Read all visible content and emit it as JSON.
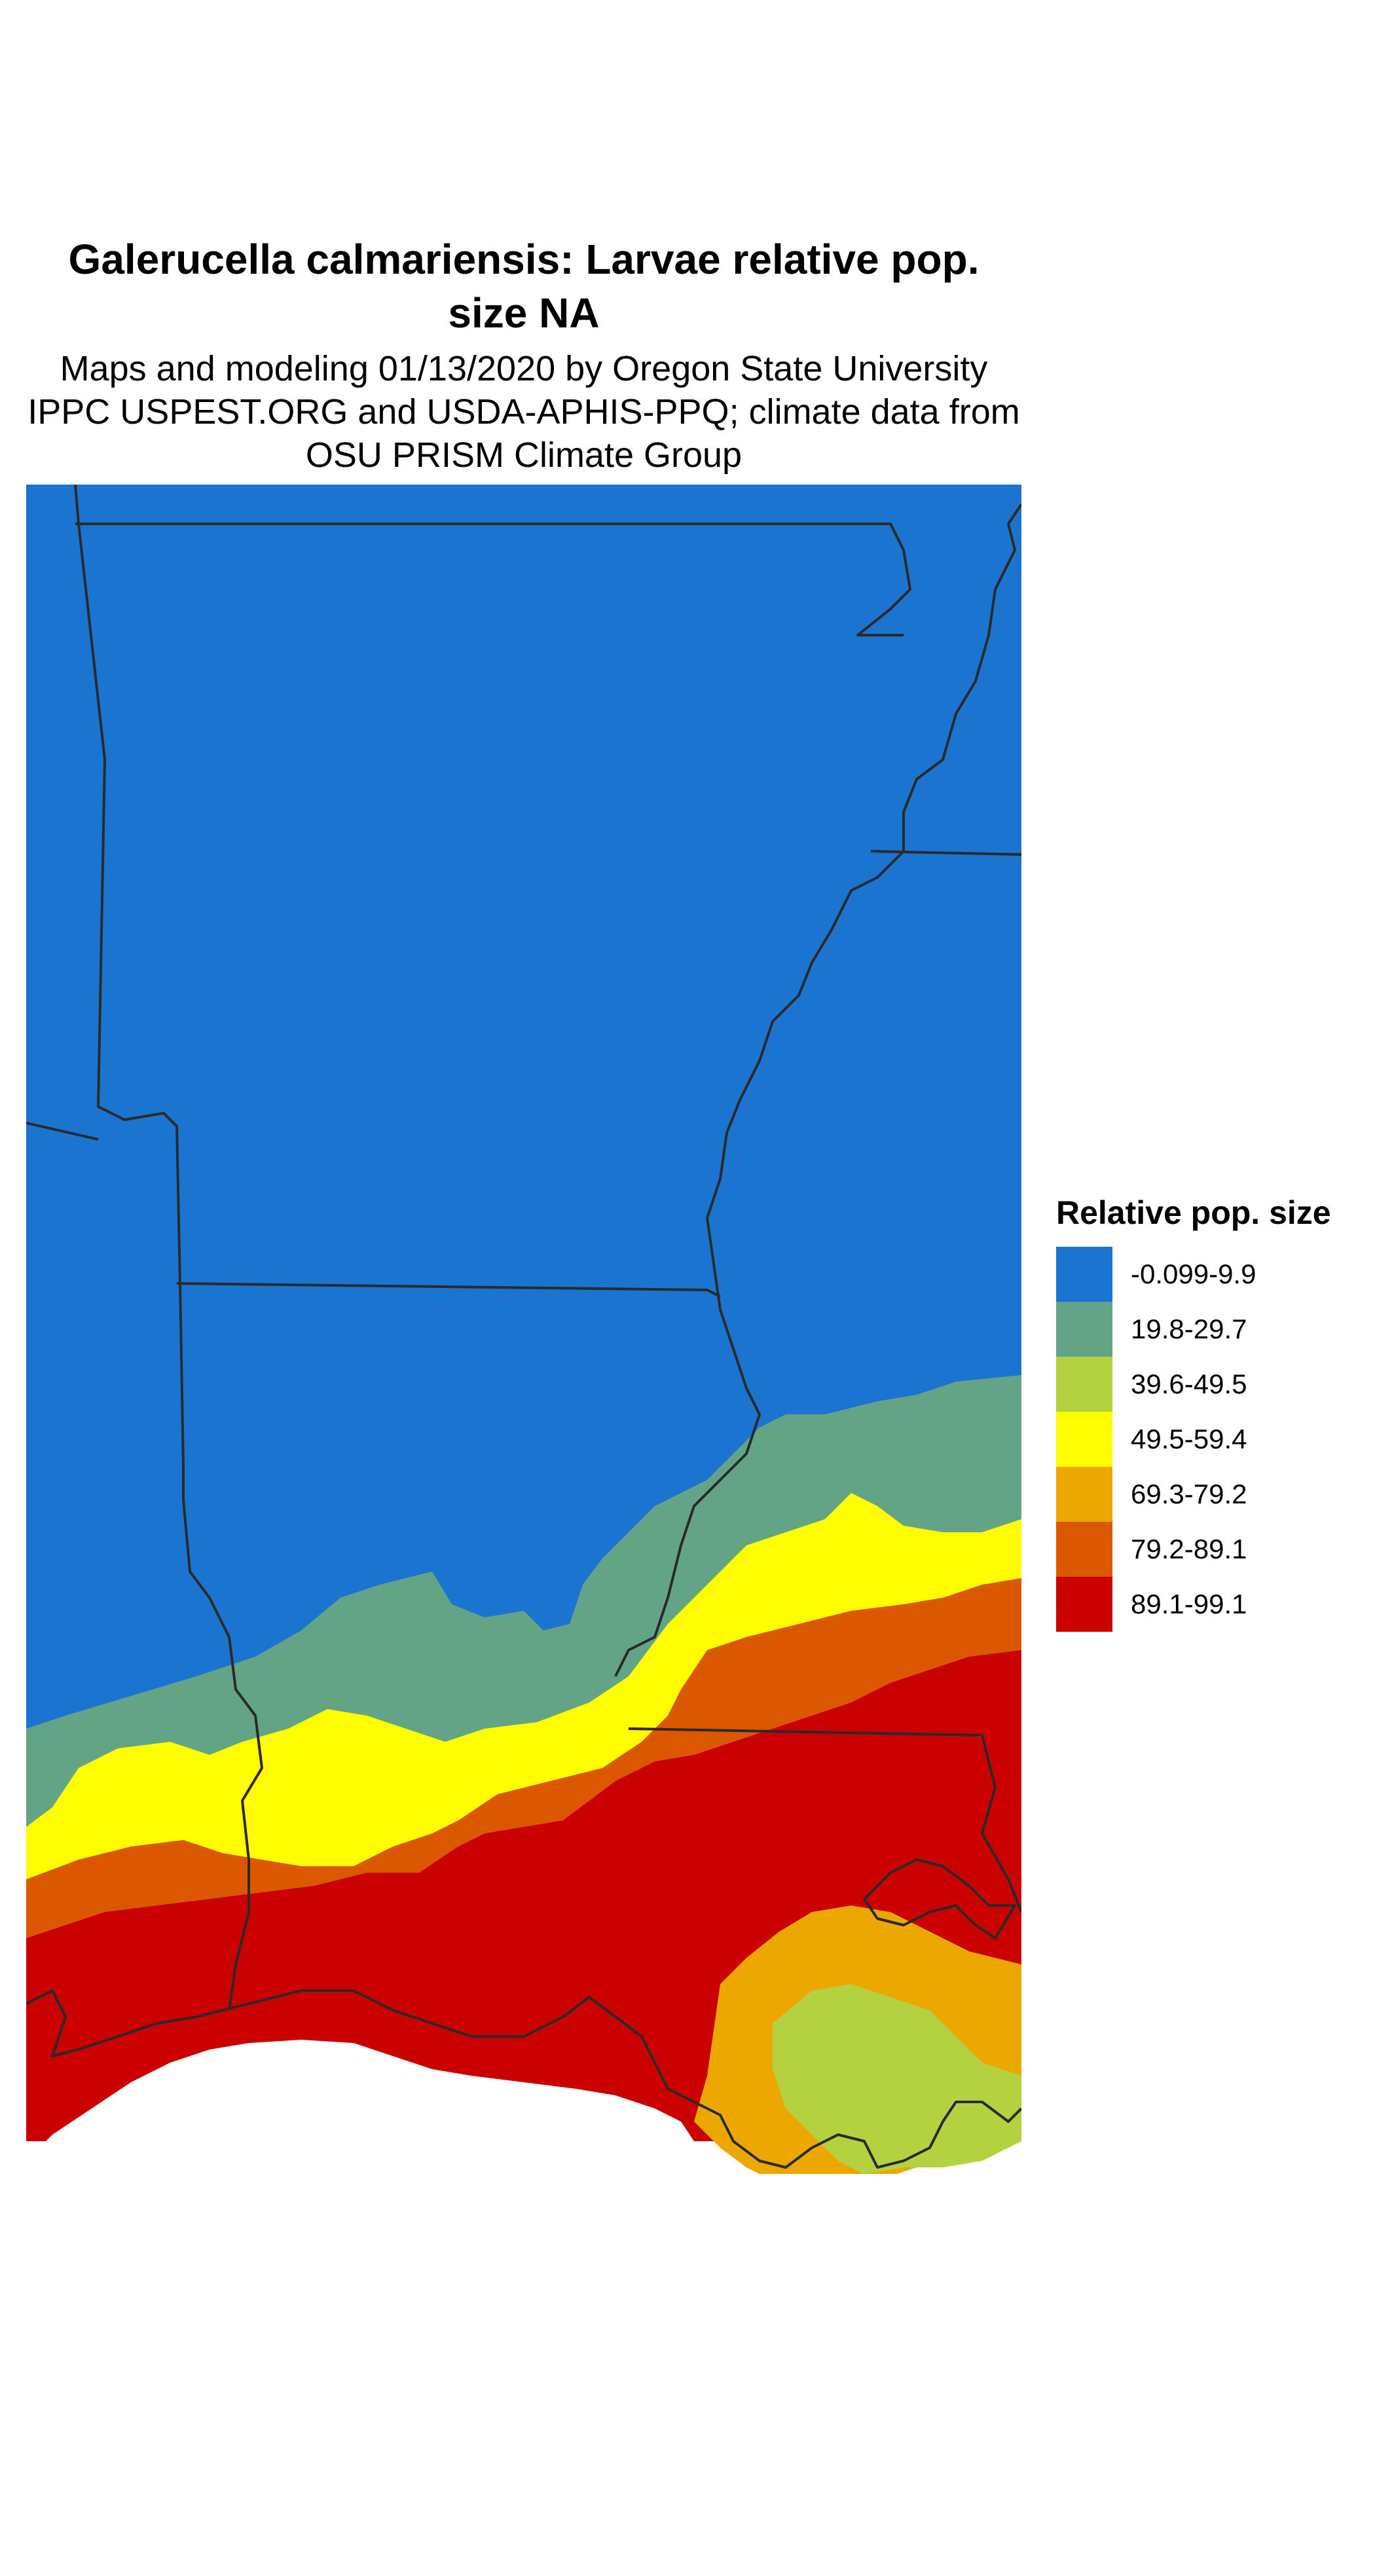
{
  "title": "Galerucella calmariensis: Larvae relative pop. size NA",
  "subtitle": "Maps and modeling 01/13/2020 by Oregon State University IPPC USPEST.ORG and USDA-APHIS-PPQ; climate data from OSU PRISM Climate Group",
  "legend": {
    "title": "Relative pop. size",
    "items": [
      {
        "label": "-0.099-9.9",
        "color": "#1b75d0"
      },
      {
        "label": "19.8-29.7",
        "color": "#63a487"
      },
      {
        "label": "39.6-49.5",
        "color": "#b4d240"
      },
      {
        "label": "49.5-59.4",
        "color": "#fffd00"
      },
      {
        "label": "69.3-79.2",
        "color": "#eca800"
      },
      {
        "label": "79.2-89.1",
        "color": "#db5800"
      },
      {
        "label": "89.1-99.1",
        "color": "#cb0000"
      }
    ]
  }
}
